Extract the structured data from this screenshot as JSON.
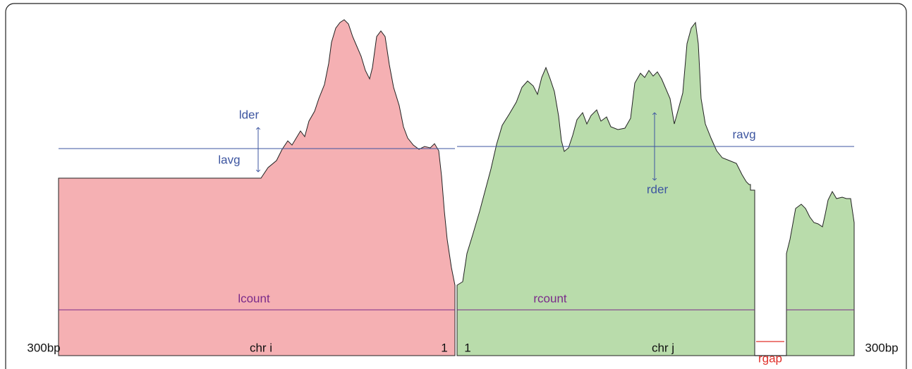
{
  "labels": {
    "lder": "lder",
    "lavg": "lavg",
    "lcount": "lcount",
    "ravg": "ravg",
    "rder": "rder",
    "rcount": "rcount",
    "rgap": "rgap"
  },
  "axis": {
    "left_end": "300bp",
    "left_chr": "chr i",
    "left_break": "1",
    "right_break": "1",
    "right_chr": "chr j",
    "right_end": "300bp"
  }
}
